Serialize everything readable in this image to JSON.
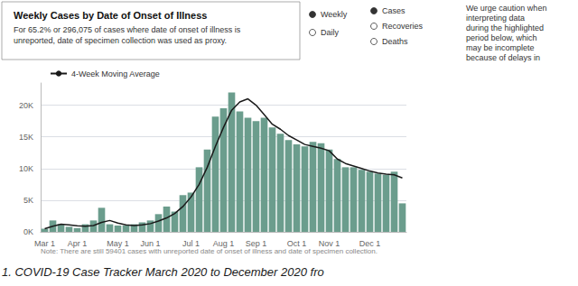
{
  "chart_data": {
    "type": "bar",
    "title": "Weekly Cases by Date of Onset of Illness",
    "subtitle": "For 65.2% or 296,075 of cases where date of onset of illness is\nunreported, date of specimen collection was used as proxy.",
    "annotations": [
      "Weekly",
      "Daily",
      "Cases",
      "Recoveries",
      "Deaths",
      "We urge caution when\ninterpreting data\nduring the highlighted\nperiod below, which\nmay be incomplete\nbecause of delays in",
      "Note: There are still 59401 cases with unreported date of onset of illness and date of specimen collection.",
      "1. COVID-19 Case Tracker March 2020 to December 2020 fro"
    ],
    "categories": [
      "Mar 1",
      null,
      null,
      null,
      "Apr 1",
      null,
      null,
      null,
      null,
      "May 1",
      null,
      null,
      null,
      "Jun 1",
      null,
      null,
      null,
      null,
      "Jul 1",
      null,
      null,
      null,
      "Aug 1",
      null,
      null,
      null,
      "Sep 1",
      null,
      null,
      null,
      null,
      "Oct 1",
      null,
      null,
      null,
      "Nov 1",
      null,
      null,
      null,
      null,
      "Dec 1",
      null,
      null,
      null,
      null
    ],
    "series": [
      {
        "type": "bar",
        "color": "#6b9d8d",
        "values": [
          500,
          1800,
          1200,
          800,
          600,
          1200,
          1800,
          3800,
          1200,
          1000,
          1000,
          1200,
          1500,
          1800,
          2800,
          4000,
          3200,
          5800,
          6200,
          10200,
          13000,
          18200,
          19500,
          22000,
          19000,
          18000,
          17500,
          18000,
          16500,
          15500,
          14500,
          13800,
          13500,
          14200,
          14000,
          13000,
          11500,
          10200,
          10200,
          9800,
          9500,
          9200,
          9000,
          9500,
          4500
        ]
      },
      {
        "type": "line",
        "name": "4-Week Moving Average",
        "color": "#1a1a1a",
        "values": [
          500,
          900,
          1200,
          1100,
          950,
          900,
          1000,
          1500,
          1800,
          1400,
          1100,
          1000,
          1100,
          1300,
          1700,
          2200,
          2900,
          4000,
          5500,
          7500,
          10200,
          13500,
          16500,
          19200,
          20500,
          21000,
          20000,
          18500,
          17000,
          16200,
          15200,
          14500,
          13800,
          13500,
          13200,
          12800,
          11500,
          10800,
          10400,
          10000,
          9600,
          9300,
          9100,
          9000,
          8500
        ]
      }
    ],
    "ylim": [
      0,
      23500
    ],
    "yticks": [
      {
        "value": 0,
        "label": "0K"
      },
      {
        "value": 5000,
        "label": "5K"
      },
      {
        "value": 10000,
        "label": "10K"
      },
      {
        "value": 15000,
        "label": "15K"
      },
      {
        "value": 20000,
        "label": "20K"
      }
    ],
    "grid": true,
    "legend": "upper left"
  }
}
